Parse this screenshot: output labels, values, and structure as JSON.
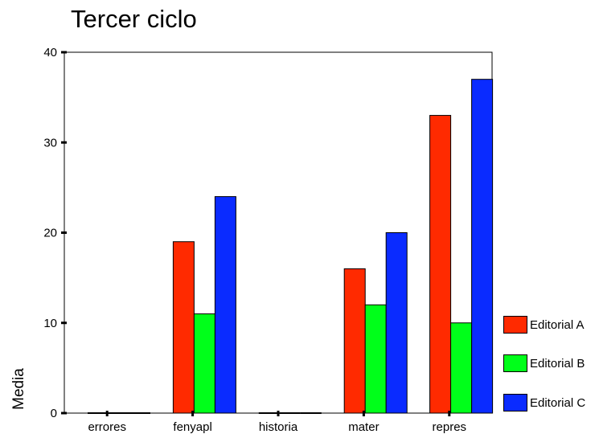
{
  "chart_data": {
    "type": "bar",
    "title": "Tercer ciclo",
    "xlabel": "",
    "ylabel": "Media",
    "categories": [
      "errores",
      "fenyapl",
      "historia",
      "mater",
      "repres"
    ],
    "series": [
      {
        "name": "Editorial A",
        "color": "#ff2a00",
        "values": [
          0,
          19,
          0,
          16,
          33
        ]
      },
      {
        "name": "Editorial B",
        "color": "#00ff1a",
        "values": [
          0,
          11,
          0,
          12,
          10
        ]
      },
      {
        "name": "Editorial C",
        "color": "#0a2bff",
        "values": [
          0,
          24,
          0,
          20,
          37
        ]
      }
    ],
    "ylim": [
      0,
      40
    ],
    "yticks": [
      0,
      10,
      20,
      30,
      40
    ],
    "legend_position": "right",
    "grid": false
  }
}
